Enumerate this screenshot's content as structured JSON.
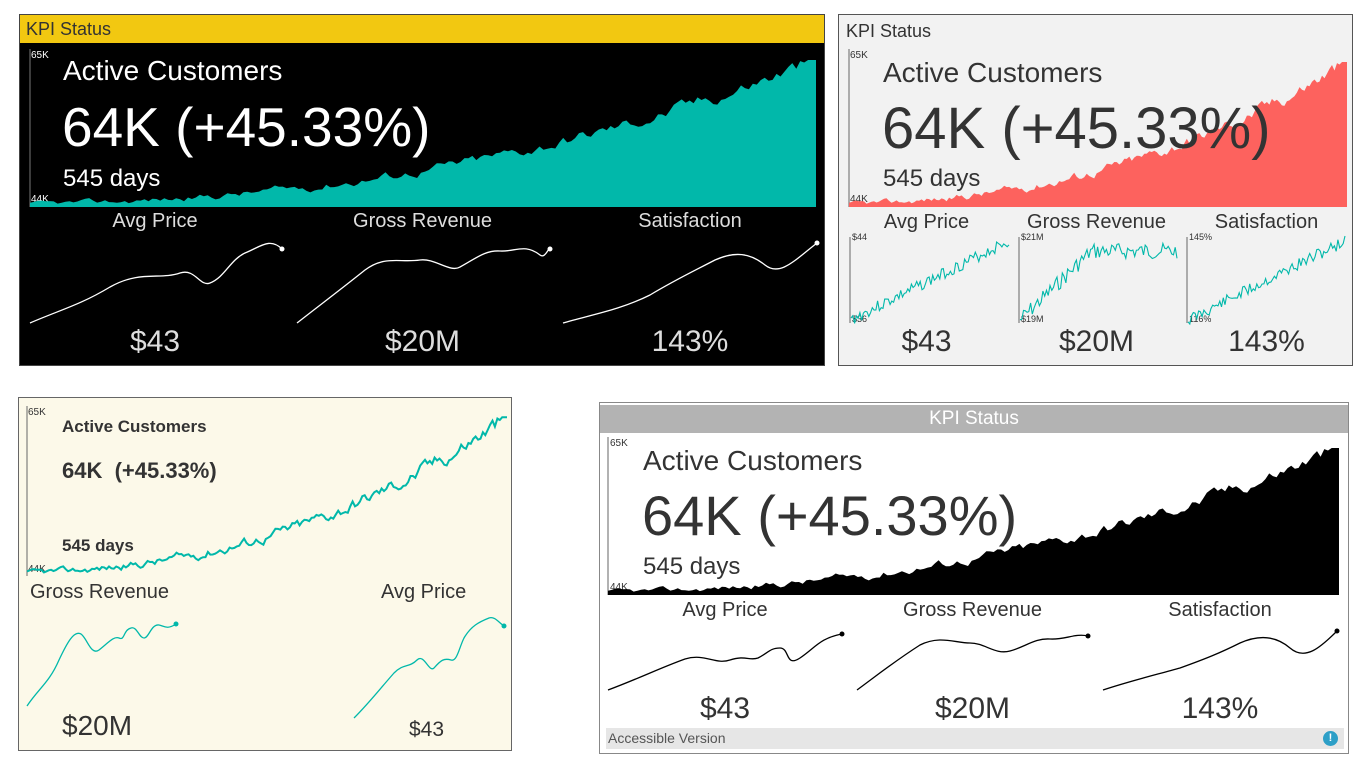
{
  "colors": {
    "teal": "#01b8aa",
    "coral": "#fd625e",
    "yellow": "#f2c811",
    "black": "#000000"
  },
  "header_title": "KPI Status",
  "main_kpi": {
    "title": "Active Customers",
    "value": "64K (+45.33%)",
    "value_spaced": "64K  (+45.33%)",
    "days": "545 days",
    "axis_max": "65K",
    "axis_min": "44K"
  },
  "small_kpis": {
    "avg_price": {
      "label": "Avg Price",
      "value": "$43",
      "axis_max": "$44",
      "axis_min": "$36"
    },
    "gross_revenue": {
      "label": "Gross Revenue",
      "value": "$20M",
      "axis_max": "$21M",
      "axis_min": "$19M"
    },
    "satisfaction": {
      "label": "Satisfaction",
      "value": "143%",
      "axis_max": "145%",
      "axis_min": "116%"
    }
  },
  "footer": {
    "label": "Accessible Version",
    "info_icon": "!"
  }
}
